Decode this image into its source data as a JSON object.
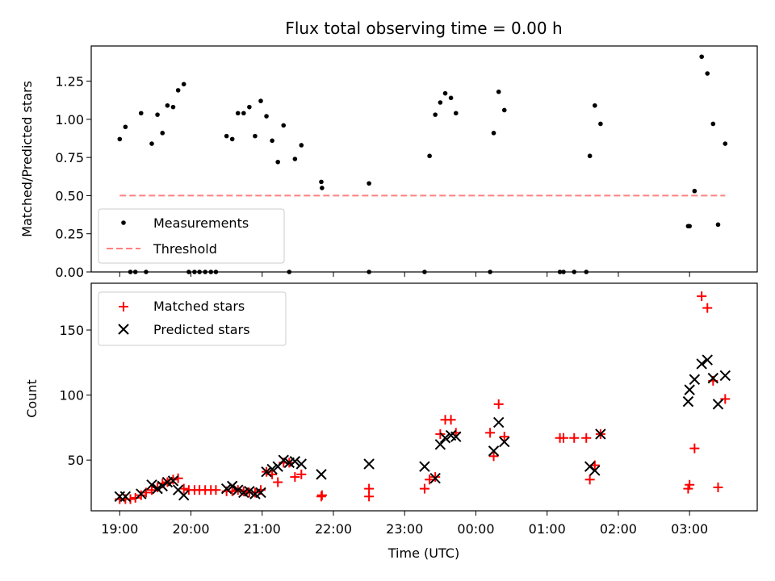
{
  "chart_data": [
    {
      "type": "scatter",
      "title": "Flux total observing time = 0.00 h",
      "xlabel": "",
      "ylabel": "Matched/Predicted stars",
      "ylim": [
        0,
        1.48
      ],
      "yticks": [
        "0.00",
        "0.25",
        "0.50",
        "0.75",
        "1.00",
        "1.25"
      ],
      "xlim": [
        -0.4,
        8.95
      ],
      "legend": {
        "placement": "lower-left",
        "entries": [
          "Measurements",
          "Threshold"
        ]
      },
      "series": [
        {
          "name": "Measurements",
          "marker": "dot",
          "color": "#000000",
          "points": [
            [
              0.0,
              0.87
            ],
            [
              0.08,
              0.95
            ],
            [
              0.15,
              0.0
            ],
            [
              0.22,
              0.0
            ],
            [
              0.3,
              1.04
            ],
            [
              0.37,
              0.0
            ],
            [
              0.45,
              0.84
            ],
            [
              0.53,
              1.03
            ],
            [
              0.6,
              0.91
            ],
            [
              0.67,
              1.09
            ],
            [
              0.75,
              1.08
            ],
            [
              0.82,
              1.19
            ],
            [
              0.9,
              1.23
            ],
            [
              0.97,
              0.0
            ],
            [
              1.05,
              0.0
            ],
            [
              1.12,
              0.0
            ],
            [
              1.2,
              0.0
            ],
            [
              1.28,
              0.0
            ],
            [
              1.35,
              0.0
            ],
            [
              1.5,
              0.89
            ],
            [
              1.58,
              0.87
            ],
            [
              1.66,
              1.04
            ],
            [
              1.74,
              1.04
            ],
            [
              1.82,
              1.08
            ],
            [
              1.9,
              0.89
            ],
            [
              1.98,
              1.12
            ],
            [
              2.06,
              1.02
            ],
            [
              2.14,
              0.86
            ],
            [
              2.22,
              0.72
            ],
            [
              2.3,
              0.96
            ],
            [
              2.38,
              0.0
            ],
            [
              2.46,
              0.74
            ],
            [
              2.55,
              0.83
            ],
            [
              2.83,
              0.59
            ],
            [
              2.84,
              0.55
            ],
            [
              3.5,
              0.58
            ],
            [
              3.5,
              0.0
            ],
            [
              4.28,
              0.0
            ],
            [
              4.35,
              0.76
            ],
            [
              4.43,
              1.03
            ],
            [
              4.5,
              1.11
            ],
            [
              4.57,
              1.17
            ],
            [
              4.65,
              1.14
            ],
            [
              4.72,
              1.04
            ],
            [
              5.2,
              0.0
            ],
            [
              5.25,
              0.91
            ],
            [
              5.32,
              1.18
            ],
            [
              5.4,
              1.06
            ],
            [
              6.18,
              0.0
            ],
            [
              6.23,
              0.0
            ],
            [
              6.38,
              0.0
            ],
            [
              6.55,
              0.0
            ],
            [
              6.6,
              0.76
            ],
            [
              6.67,
              1.09
            ],
            [
              6.75,
              0.97
            ],
            [
              7.98,
              0.3
            ],
            [
              8.0,
              0.3
            ],
            [
              8.07,
              0.53
            ],
            [
              8.17,
              1.41
            ],
            [
              8.25,
              1.3
            ],
            [
              8.33,
              0.97
            ],
            [
              8.4,
              0.31
            ],
            [
              8.5,
              0.84
            ]
          ]
        },
        {
          "name": "Threshold",
          "marker": "dashed-line",
          "color": "#ff8080",
          "points": [
            [
              0.0,
              0.5
            ],
            [
              8.5,
              0.5
            ]
          ]
        }
      ]
    },
    {
      "type": "scatter",
      "title": "",
      "xlabel": "Time (UTC)",
      "ylabel": "Count",
      "ylim": [
        11,
        186
      ],
      "yticks": [
        "50",
        "100",
        "150"
      ],
      "xlim": [
        -0.4,
        8.95
      ],
      "xticks": [
        "19:00",
        "20:00",
        "21:00",
        "22:00",
        "23:00",
        "00:00",
        "01:00",
        "02:00",
        "03:00"
      ],
      "legend": {
        "placement": "top-left",
        "entries": [
          "Matched stars",
          "Predicted stars"
        ]
      },
      "series": [
        {
          "name": "Matched stars",
          "marker": "plus",
          "color": "#ff0000",
          "points": [
            [
              0.0,
              20
            ],
            [
              0.08,
              20
            ],
            [
              0.15,
              20
            ],
            [
              0.22,
              21
            ],
            [
              0.3,
              23
            ],
            [
              0.37,
              25
            ],
            [
              0.45,
              27
            ],
            [
              0.53,
              29
            ],
            [
              0.6,
              32
            ],
            [
              0.67,
              33
            ],
            [
              0.75,
              35
            ],
            [
              0.82,
              36
            ],
            [
              0.9,
              28
            ],
            [
              0.97,
              27
            ],
            [
              1.05,
              27
            ],
            [
              1.12,
              27
            ],
            [
              1.2,
              27
            ],
            [
              1.28,
              27
            ],
            [
              1.35,
              27
            ],
            [
              1.5,
              26
            ],
            [
              1.58,
              26
            ],
            [
              1.66,
              27
            ],
            [
              1.74,
              26
            ],
            [
              1.82,
              25
            ],
            [
              1.9,
              25
            ],
            [
              1.98,
              27
            ],
            [
              2.06,
              41
            ],
            [
              2.14,
              39
            ],
            [
              2.22,
              33
            ],
            [
              2.3,
              48
            ],
            [
              2.38,
              48
            ],
            [
              2.46,
              37
            ],
            [
              2.55,
              39
            ],
            [
              2.83,
              22
            ],
            [
              2.84,
              23
            ],
            [
              3.5,
              22
            ],
            [
              3.5,
              28
            ],
            [
              4.28,
              28
            ],
            [
              4.35,
              35
            ],
            [
              4.43,
              37
            ],
            [
              4.5,
              70
            ],
            [
              4.57,
              81
            ],
            [
              4.65,
              81
            ],
            [
              4.72,
              71
            ],
            [
              5.2,
              71
            ],
            [
              5.25,
              53
            ],
            [
              5.32,
              93
            ],
            [
              5.4,
              68
            ],
            [
              6.18,
              67
            ],
            [
              6.23,
              67
            ],
            [
              6.38,
              67
            ],
            [
              6.55,
              67
            ],
            [
              6.6,
              35
            ],
            [
              6.67,
              46
            ],
            [
              6.75,
              70
            ],
            [
              7.98,
              28
            ],
            [
              8.0,
              31
            ],
            [
              8.07,
              59
            ],
            [
              8.17,
              176
            ],
            [
              8.25,
              167
            ],
            [
              8.33,
              111
            ],
            [
              8.4,
              29
            ],
            [
              8.5,
              97
            ]
          ]
        },
        {
          "name": "Predicted stars",
          "marker": "x",
          "color": "#000000",
          "points": [
            [
              0.0,
              22
            ],
            [
              0.08,
              22
            ],
            [
              0.3,
              24
            ],
            [
              0.45,
              31
            ],
            [
              0.53,
              28
            ],
            [
              0.6,
              30
            ],
            [
              0.67,
              33
            ],
            [
              0.75,
              34
            ],
            [
              0.82,
              27
            ],
            [
              0.9,
              23
            ],
            [
              1.5,
              28
            ],
            [
              1.58,
              30
            ],
            [
              1.66,
              27
            ],
            [
              1.74,
              25
            ],
            [
              1.82,
              26
            ],
            [
              1.9,
              24
            ],
            [
              1.98,
              25
            ],
            [
              2.06,
              41
            ],
            [
              2.14,
              43
            ],
            [
              2.22,
              45
            ],
            [
              2.3,
              50
            ],
            [
              2.38,
              48
            ],
            [
              2.46,
              49
            ],
            [
              2.55,
              47
            ],
            [
              2.83,
              39
            ],
            [
              3.5,
              47
            ],
            [
              4.28,
              45
            ],
            [
              4.43,
              36
            ],
            [
              4.5,
              62
            ],
            [
              4.57,
              67
            ],
            [
              4.65,
              69
            ],
            [
              4.72,
              68
            ],
            [
              5.25,
              57
            ],
            [
              5.32,
              79
            ],
            [
              5.4,
              64
            ],
            [
              6.6,
              45
            ],
            [
              6.67,
              42
            ],
            [
              6.75,
              70
            ],
            [
              7.98,
              95
            ],
            [
              8.0,
              104
            ],
            [
              8.07,
              112
            ],
            [
              8.17,
              124
            ],
            [
              8.25,
              127
            ],
            [
              8.33,
              113
            ],
            [
              8.4,
              93
            ],
            [
              8.5,
              115
            ]
          ]
        }
      ]
    }
  ]
}
